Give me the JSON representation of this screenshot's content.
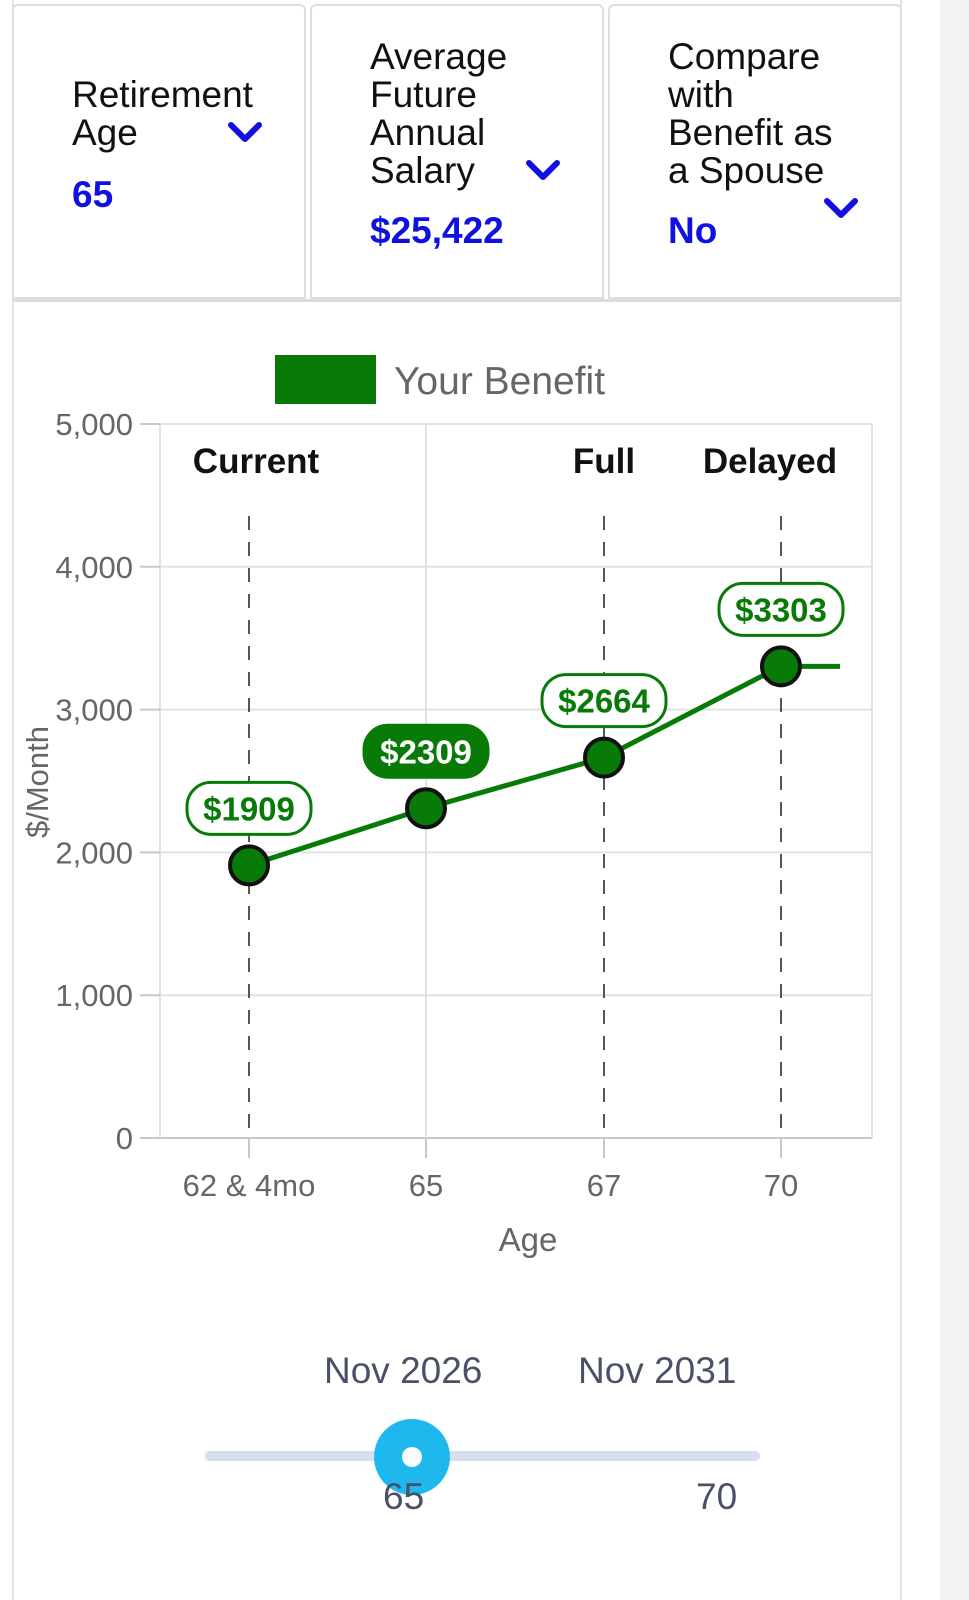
{
  "selectors": [
    {
      "label": "Retirement\nAge",
      "value": "65"
    },
    {
      "label": "Average\nFuture\nAnnual\nSalary",
      "value": "$25,422"
    },
    {
      "label": "Compare\nwith\nBenefit as\na Spouse",
      "value": "No"
    }
  ],
  "icons": {
    "dropdown": "chevron-down-icon",
    "slider": "slider-thumb-icon"
  },
  "colors": {
    "series": "#087a08",
    "selector_value": "#1010e0",
    "slider_thumb": "#1eb8ee",
    "slider_track": "#d6dff0"
  },
  "chart_data": {
    "type": "line",
    "legend": {
      "label": "Your Benefit",
      "position": "top"
    },
    "xlabel": "Age",
    "ylabel": "$/Month",
    "x": [
      62.33,
      65,
      67,
      70,
      71
    ],
    "x_ticks": [
      {
        "value": 62.33,
        "label": "62 & 4mo"
      },
      {
        "value": 65,
        "label": "65"
      },
      {
        "value": 67,
        "label": "67"
      },
      {
        "value": 70,
        "label": "70"
      }
    ],
    "xlim": [
      61.2,
      71
    ],
    "ylim": [
      0,
      5000
    ],
    "y_ticks": [
      {
        "value": 0,
        "label": "0"
      },
      {
        "value": 1000,
        "label": "1,000"
      },
      {
        "value": 2000,
        "label": "2,000"
      },
      {
        "value": 3000,
        "label": "3,000"
      },
      {
        "value": 4000,
        "label": "4,000"
      },
      {
        "value": 5000,
        "label": "5,000"
      }
    ],
    "series": [
      {
        "name": "Your Benefit",
        "values": [
          1909,
          2309,
          2664,
          3303,
          3303
        ],
        "markers": [
          {
            "x": 62.33,
            "value": 1909,
            "label": "$1909",
            "selected": false
          },
          {
            "x": 65,
            "value": 2309,
            "label": "$2309",
            "selected": true
          },
          {
            "x": 67,
            "value": 2664,
            "label": "$2664",
            "selected": false
          },
          {
            "x": 70,
            "value": 3303,
            "label": "$3303",
            "selected": false
          }
        ]
      }
    ],
    "annotations": [
      {
        "x": 62.33,
        "label": "Current"
      },
      {
        "x": 67,
        "label": "Full"
      },
      {
        "x": 70,
        "label": "Delayed"
      }
    ],
    "grid": true
  },
  "slider": {
    "date_left": "Nov 2026",
    "date_right": "Nov 2031",
    "value": 65,
    "min": 62.33,
    "max": 70,
    "tick_left": "65",
    "tick_right": "70"
  }
}
